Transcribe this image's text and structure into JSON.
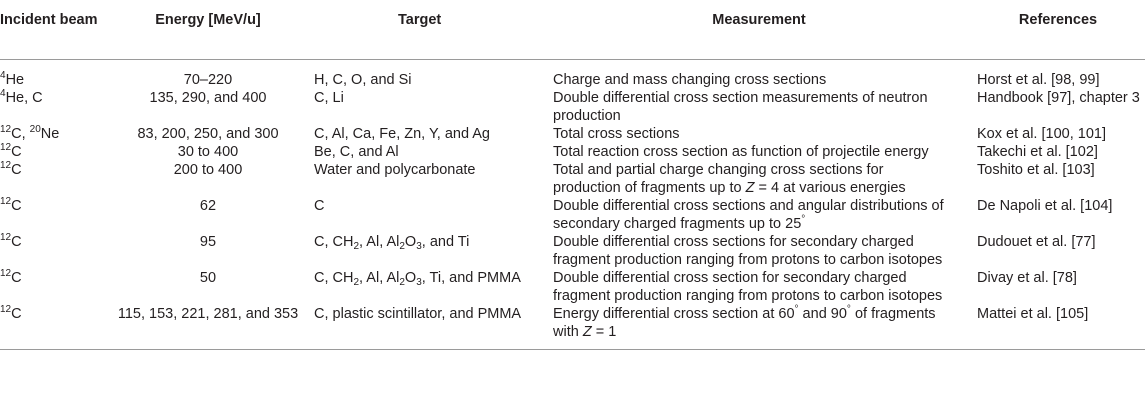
{
  "headers": {
    "incident_beam": "Incident beam",
    "energy": "Energy [MeV/u]",
    "target": "Target",
    "measurement": "Measurement",
    "references": "References"
  },
  "rows": [
    {
      "beam": [
        {
          "sup": "4"
        },
        {
          "t": "He"
        }
      ],
      "energy": "70–220",
      "target": [
        {
          "t": "H, C, O, and Si"
        }
      ],
      "measurement": [
        [
          {
            "t": "Charge and mass changing cross sections"
          }
        ]
      ],
      "references": "Horst et al. [98, 99]"
    },
    {
      "beam": [
        {
          "sup": "4"
        },
        {
          "t": "He, C"
        }
      ],
      "energy": "135, 290, and 400",
      "target": [
        {
          "t": "C, Li"
        }
      ],
      "measurement": [
        [
          {
            "t": "Double differential cross section measurements of neutron"
          }
        ],
        [
          {
            "t": "production"
          }
        ]
      ],
      "references": "Handbook [97], chapter 3"
    },
    {
      "beam": [
        {
          "sup": "12"
        },
        {
          "t": "C, "
        },
        {
          "sup": "20"
        },
        {
          "t": "Ne"
        }
      ],
      "energy": "83, 200, 250, and 300",
      "target": [
        {
          "t": "C, Al, Ca, Fe, Zn, Y, and Ag"
        }
      ],
      "measurement": [
        [
          {
            "t": "Total cross sections"
          }
        ]
      ],
      "references": "Kox et al. [100, 101]"
    },
    {
      "beam": [
        {
          "sup": "12"
        },
        {
          "t": "C"
        }
      ],
      "energy": "30 to 400",
      "target": [
        {
          "t": "Be, C, and Al"
        }
      ],
      "measurement": [
        [
          {
            "t": "Total reaction cross section as function of projectile energy"
          }
        ]
      ],
      "references": "Takechi et al. [102]"
    },
    {
      "beam": [
        {
          "sup": "12"
        },
        {
          "t": "C"
        }
      ],
      "energy": "200 to 400",
      "target": [
        {
          "t": "Water and polycarbonate"
        }
      ],
      "measurement": [
        [
          {
            "t": "Total and partial charge changing cross sections for"
          }
        ],
        [
          {
            "t": "production of fragments up to "
          },
          {
            "i": "Z"
          },
          {
            "t": " = 4 at various energies"
          }
        ]
      ],
      "references": "Toshito et al. [103]"
    },
    {
      "beam": [
        {
          "sup": "12"
        },
        {
          "t": "C"
        }
      ],
      "energy": "62",
      "target": [
        {
          "t": "C"
        }
      ],
      "measurement": [
        [
          {
            "t": "Double differential cross sections and angular distributions of"
          }
        ],
        [
          {
            "t": "secondary charged fragments up to 25"
          },
          {
            "sup": "°"
          }
        ]
      ],
      "references": "De Napoli et al. [104]"
    },
    {
      "beam": [
        {
          "sup": "12"
        },
        {
          "t": "C"
        }
      ],
      "energy": "95",
      "target": [
        {
          "t": "C, CH"
        },
        {
          "sub": "2"
        },
        {
          "t": ", Al, Al"
        },
        {
          "sub": "2"
        },
        {
          "t": "O"
        },
        {
          "sub": "3"
        },
        {
          "t": ", and Ti"
        }
      ],
      "measurement": [
        [
          {
            "t": "Double differential cross sections for secondary charged"
          }
        ],
        [
          {
            "t": "fragment production ranging from protons to carbon isotopes"
          }
        ]
      ],
      "references": "Dudouet et al. [77]"
    },
    {
      "beam": [
        {
          "sup": "12"
        },
        {
          "t": "C"
        }
      ],
      "energy": "50",
      "target": [
        {
          "t": "C, CH"
        },
        {
          "sub": "2"
        },
        {
          "t": ", Al, Al"
        },
        {
          "sub": "2"
        },
        {
          "t": "O"
        },
        {
          "sub": "3"
        },
        {
          "t": ", Ti, and PMMA"
        }
      ],
      "measurement": [
        [
          {
            "t": "Double differential cross section for secondary charged"
          }
        ],
        [
          {
            "t": "fragment production ranging from protons to carbon isotopes"
          }
        ]
      ],
      "references": "Divay et al. [78]"
    },
    {
      "beam": [
        {
          "sup": "12"
        },
        {
          "t": "C"
        }
      ],
      "energy": "115, 153, 221, 281, and 353",
      "target": [
        {
          "t": "C, plastic scintillator, and PMMA"
        }
      ],
      "measurement": [
        [
          {
            "t": "Energy differential cross section at 60"
          },
          {
            "sup": "°"
          },
          {
            "t": " and 90"
          },
          {
            "sup": "°"
          },
          {
            "t": " of fragments"
          }
        ],
        [
          {
            "t": "with "
          },
          {
            "i": "Z"
          },
          {
            "t": " = 1"
          }
        ]
      ],
      "references": "Mattei et al. [105]"
    }
  ]
}
